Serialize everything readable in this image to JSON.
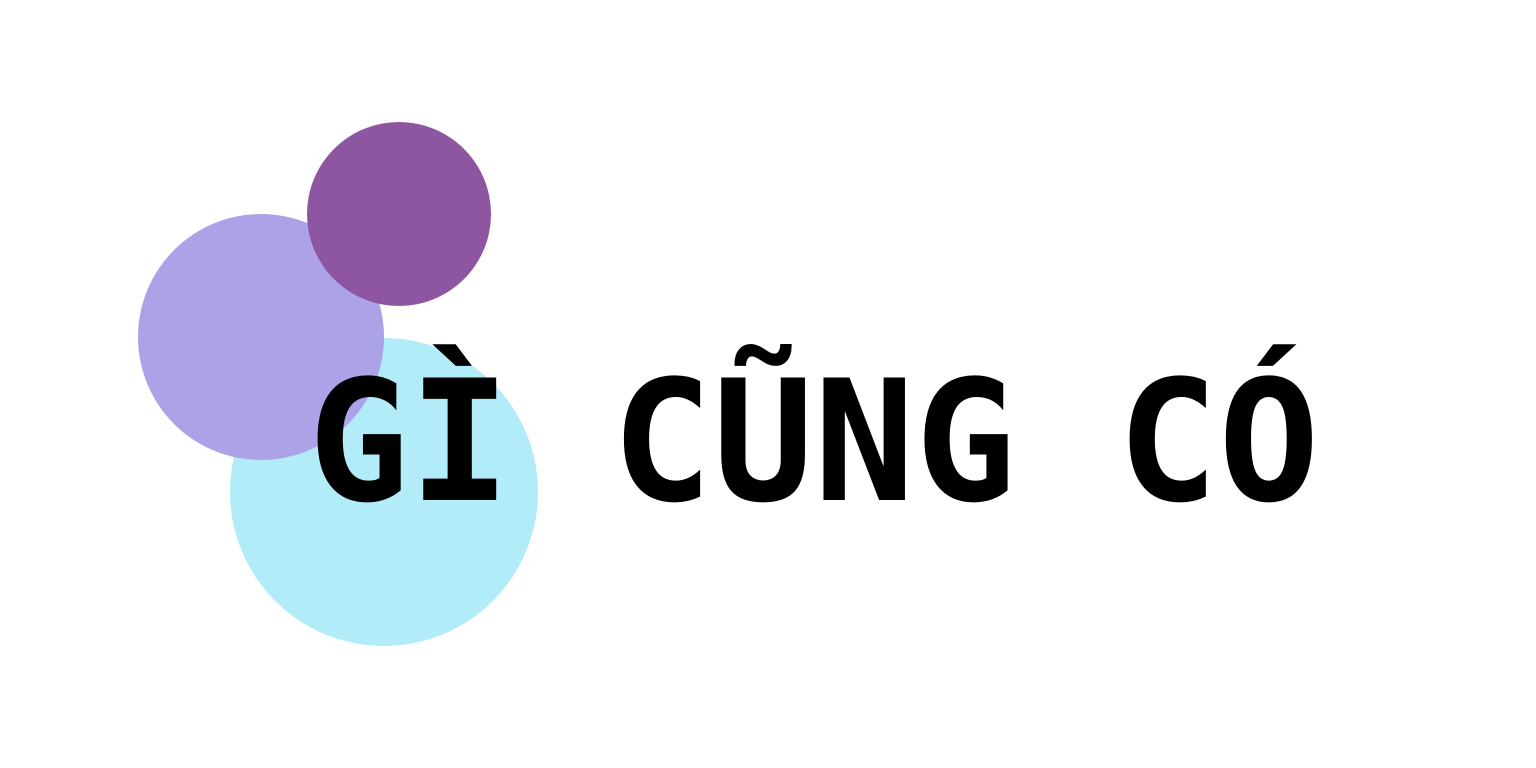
{
  "logo": {
    "text": "GÌ CŨNG CÓ",
    "text_color": "#000000"
  },
  "colors": {
    "background": "#ffffff",
    "circle_cyan": "#b3ecf9",
    "circle_lavender": "#aca2e8",
    "circle_purple": "#8e55a0"
  }
}
